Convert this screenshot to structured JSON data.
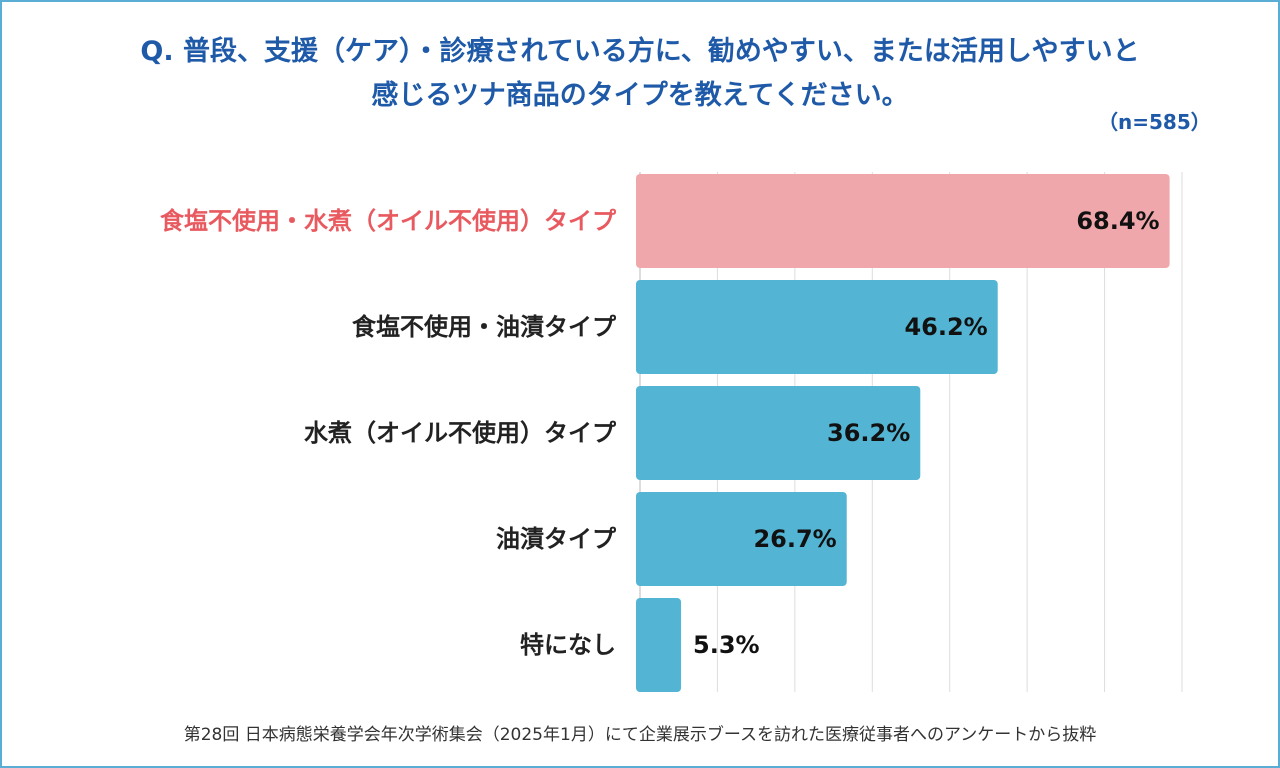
{
  "title": {
    "line1": "Q. 普段、支援（ケア）・診療されている方に、勧めやすい、または活用しやすいと",
    "line2": "感じるツナ商品のタイプを教えてください。"
  },
  "sample_size": "（n=585）",
  "footer": "第28回 日本病態栄養学会年次学術集会（2025年1月）にて企業展示ブースを訪れた医療従事者へのアンケートから抜粋",
  "colors": {
    "title": "#1f5aa8",
    "highlight_bar": "#f0a7ab",
    "highlight_label": "#e85a5f",
    "bar": "#54b4d4",
    "label": "#222222",
    "grid": "#dddddd",
    "frame": "#5aaed6"
  },
  "chart_data": {
    "type": "bar",
    "orientation": "horizontal",
    "categories": [
      "食塩不使用・水煮（オイル不使用）タイプ",
      "食塩不使用・油漬タイプ",
      "水煮（オイル不使用）タイプ",
      "油漬タイプ",
      "特になし"
    ],
    "values": [
      68.4,
      46.2,
      36.2,
      26.7,
      5.3
    ],
    "value_labels": [
      "68.4%",
      "46.2%",
      "36.2%",
      "26.7%",
      "5.3%"
    ],
    "highlight_index": 0,
    "unit": "%",
    "xlim": [
      0,
      70
    ],
    "grid": true
  }
}
